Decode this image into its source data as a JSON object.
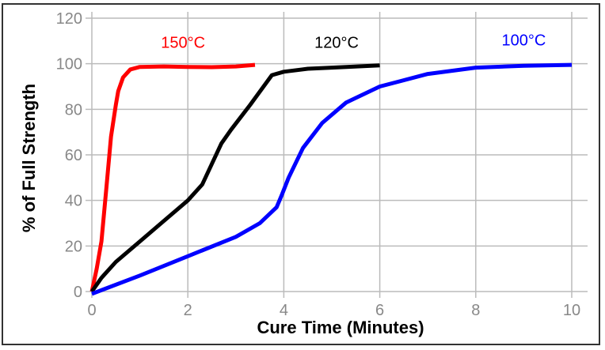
{
  "chart_data": {
    "type": "line",
    "title": "",
    "xlabel": "Cure Time (Minutes)",
    "ylabel": "% of Full Strength",
    "xlim": [
      0,
      10
    ],
    "ylim": [
      0,
      120
    ],
    "xticks": [
      "0",
      "2",
      "4",
      "6",
      "8",
      "10"
    ],
    "yticks": [
      "0",
      "20",
      "40",
      "60",
      "80",
      "100",
      "120"
    ],
    "grid": true,
    "series": [
      {
        "name": "150°C",
        "color": "#ff0000",
        "label_at": [
          1.9,
          107
        ],
        "points": [
          [
            0,
            0
          ],
          [
            0.1,
            10
          ],
          [
            0.2,
            22
          ],
          [
            0.3,
            45
          ],
          [
            0.4,
            68
          ],
          [
            0.5,
            82
          ],
          [
            0.55,
            88
          ],
          [
            0.65,
            94
          ],
          [
            0.8,
            97.5
          ],
          [
            1.0,
            98.6
          ],
          [
            1.5,
            98.8
          ],
          [
            2.0,
            98.6
          ],
          [
            2.5,
            98.5
          ],
          [
            3.0,
            98.8
          ],
          [
            3.4,
            99.5
          ]
        ]
      },
      {
        "name": "120°C",
        "color": "#000000",
        "label_at": [
          5.1,
          107
        ],
        "points": [
          [
            0,
            0
          ],
          [
            0.2,
            6
          ],
          [
            0.5,
            13
          ],
          [
            1.0,
            22
          ],
          [
            1.5,
            31
          ],
          [
            2.0,
            40
          ],
          [
            2.3,
            47
          ],
          [
            2.5,
            56
          ],
          [
            2.7,
            65
          ],
          [
            2.9,
            71
          ],
          [
            3.3,
            82
          ],
          [
            3.75,
            95
          ],
          [
            4.0,
            96.5
          ],
          [
            4.5,
            97.8
          ],
          [
            5.0,
            98.3
          ],
          [
            6.0,
            99.3
          ]
        ]
      },
      {
        "name": "100°C",
        "color": "#0000ff",
        "label_at": [
          9.0,
          108
        ],
        "points": [
          [
            0,
            -1
          ],
          [
            1,
            7
          ],
          [
            2,
            15.5
          ],
          [
            3,
            24
          ],
          [
            3.5,
            30
          ],
          [
            3.85,
            37
          ],
          [
            3.95,
            42
          ],
          [
            4.1,
            50
          ],
          [
            4.4,
            63
          ],
          [
            4.8,
            74
          ],
          [
            5.3,
            83
          ],
          [
            6.0,
            90
          ],
          [
            7.0,
            95.5
          ],
          [
            8.0,
            98.3
          ],
          [
            9.0,
            99.1
          ],
          [
            10.0,
            99.5
          ]
        ]
      }
    ]
  }
}
